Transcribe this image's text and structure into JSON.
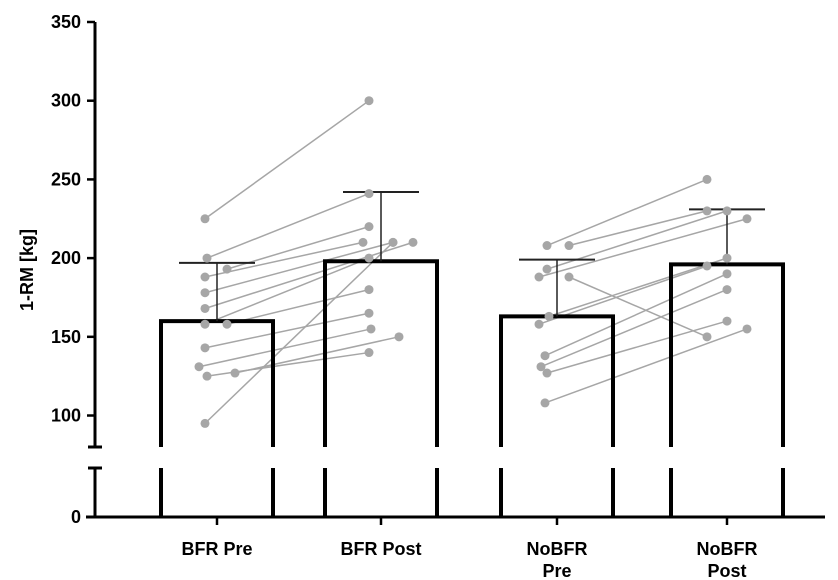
{
  "chart_data": {
    "type": "bar",
    "ylabel": "1-RM [kg]",
    "ylim_upper": [
      80,
      350
    ],
    "ylim_lower": [
      0,
      30
    ],
    "y_ticks_upper": [
      100,
      150,
      200,
      250,
      300,
      350
    ],
    "y_ticks_lower": [
      0
    ],
    "axis_break": true,
    "categories": [
      "BFR Pre",
      "BFR Post",
      "NoBFR Pre",
      "NoBFR Post"
    ],
    "category_lines": [
      [
        "BFR Pre"
      ],
      [
        "BFR Post"
      ],
      [
        "NoBFR",
        "Pre"
      ],
      [
        "NoBFR",
        "Post"
      ]
    ],
    "bar_means": [
      160,
      198,
      163,
      196
    ],
    "error_upper": [
      197,
      242,
      199,
      231
    ],
    "groups": [
      {
        "name": "BFR",
        "pre": [
          225,
          200,
          193,
          188,
          178,
          168,
          158,
          158,
          143,
          131,
          127,
          125,
          95
        ],
        "post": [
          300,
          241,
          220,
          210,
          210,
          210,
          200,
          180,
          165,
          155,
          150,
          140,
          210
        ]
      },
      {
        "name": "NoBFR",
        "pre": [
          208,
          208,
          193,
          188,
          163,
          158,
          138,
          131,
          127,
          108,
          188
        ],
        "post": [
          250,
          230,
          230,
          225,
          200,
          195,
          190,
          180,
          160,
          155,
          150
        ]
      }
    ],
    "colors": {
      "bar_edge": "#000000",
      "bar_fill": "#ffffff",
      "points": "#a6a6a6",
      "lines": "#a6a6a6",
      "axis": "#000000"
    },
    "grid": false
  }
}
